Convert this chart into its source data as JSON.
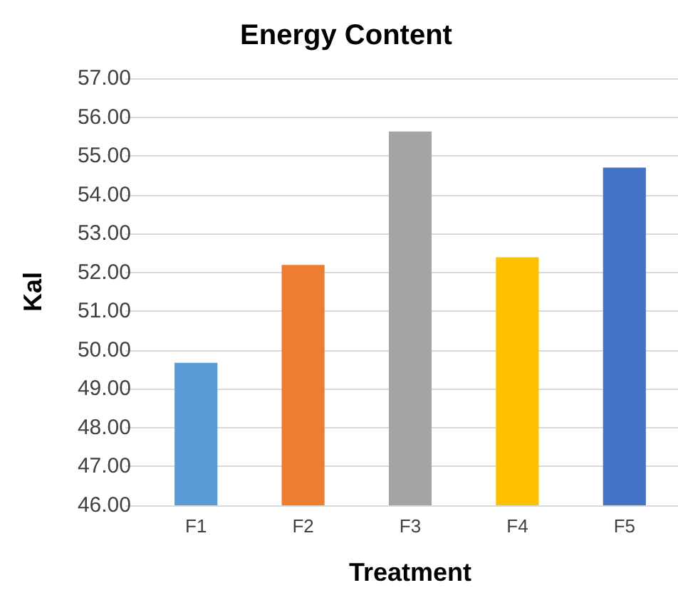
{
  "chart_data": {
    "type": "bar",
    "title": "Energy Content",
    "xlabel": "Treatment",
    "ylabel": "Kal",
    "categories": [
      "F1",
      "F2",
      "F3",
      "F4",
      "F5"
    ],
    "values": [
      49.67,
      52.19,
      55.63,
      52.39,
      54.7
    ],
    "colors": [
      "#5b9bd5",
      "#ed7d31",
      "#a5a5a5",
      "#ffc000",
      "#4472c4"
    ],
    "ylim": [
      46,
      57
    ],
    "yticks": [
      {
        "value": 46,
        "label": "46.00"
      },
      {
        "value": 47,
        "label": "47.00"
      },
      {
        "value": 48,
        "label": "48.00"
      },
      {
        "value": 49,
        "label": "49.00"
      },
      {
        "value": 50,
        "label": "50.00"
      },
      {
        "value": 51,
        "label": "51.00"
      },
      {
        "value": 52,
        "label": "52.00"
      },
      {
        "value": 53,
        "label": "53.00"
      },
      {
        "value": 54,
        "label": "54.00"
      },
      {
        "value": 55,
        "label": "55.00"
      },
      {
        "value": 56,
        "label": "56.00"
      },
      {
        "value": 57,
        "label": "57.00"
      }
    ],
    "grid": true
  }
}
